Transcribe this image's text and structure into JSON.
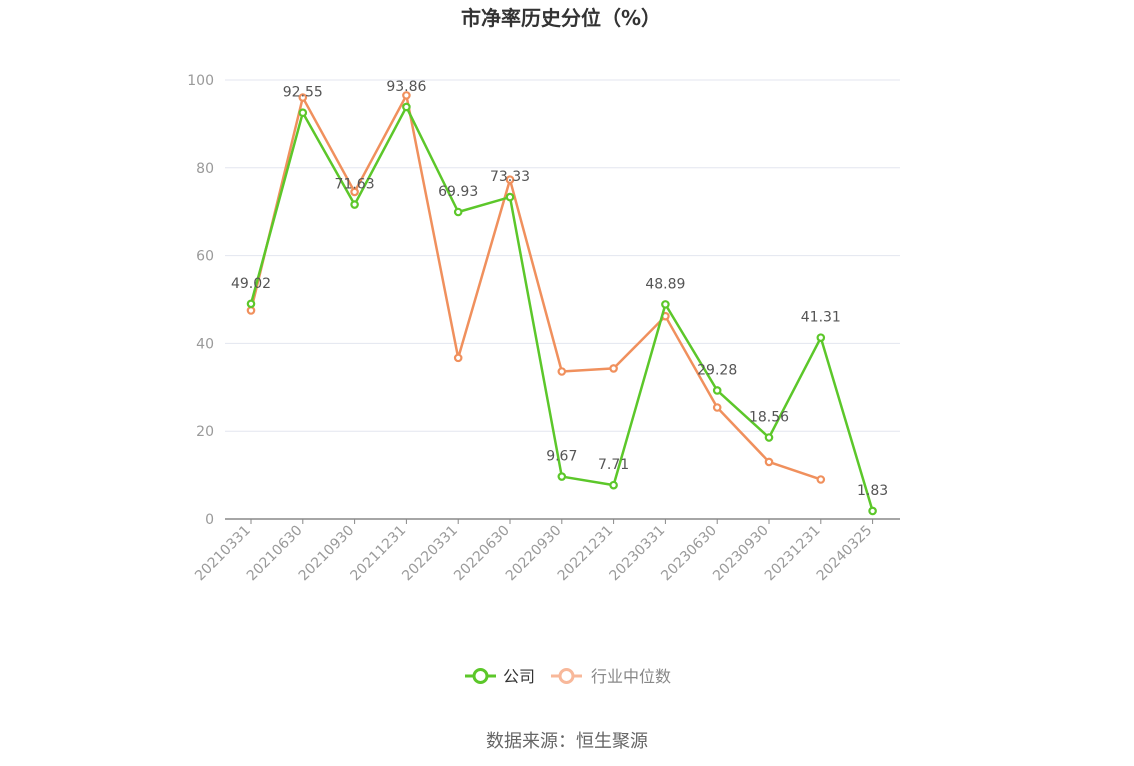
{
  "chart_data": {
    "type": "line",
    "title": "市净率历史分位（%）",
    "xlabel": "",
    "ylabel": "",
    "ylim": [
      0,
      100
    ],
    "yticks": [
      0,
      20,
      40,
      60,
      80,
      100
    ],
    "grid": true,
    "legend_position": "bottom-center",
    "categories": [
      "20210331",
      "20210630",
      "20210930",
      "20211231",
      "20220331",
      "20220630",
      "20220930",
      "20221231",
      "20230331",
      "20230630",
      "20230930",
      "20231231",
      "20240325"
    ],
    "series": [
      {
        "name": "公司",
        "color": "#5cc72a",
        "values": [
          49.02,
          92.55,
          71.63,
          93.86,
          69.93,
          73.33,
          9.67,
          7.71,
          48.89,
          29.28,
          18.56,
          41.31,
          1.83
        ],
        "labels": [
          "49.02",
          "92.55",
          "71.63",
          "93.86",
          "69.93",
          "73.33",
          "9.67",
          "7.71",
          "48.89",
          "29.28",
          "18.56",
          "41.31",
          "1.83"
        ]
      },
      {
        "name": "行业中位数",
        "color": "#f0905d",
        "values": [
          47.5,
          96.0,
          74.5,
          96.5,
          36.7,
          77.3,
          33.6,
          34.3,
          46.2,
          25.4,
          13.0,
          9.0,
          null
        ]
      }
    ],
    "legend_colors": {
      "公司": "#5cc72a",
      "行业中位数": "#f8b89a"
    },
    "source": "数据来源：恒生聚源"
  }
}
